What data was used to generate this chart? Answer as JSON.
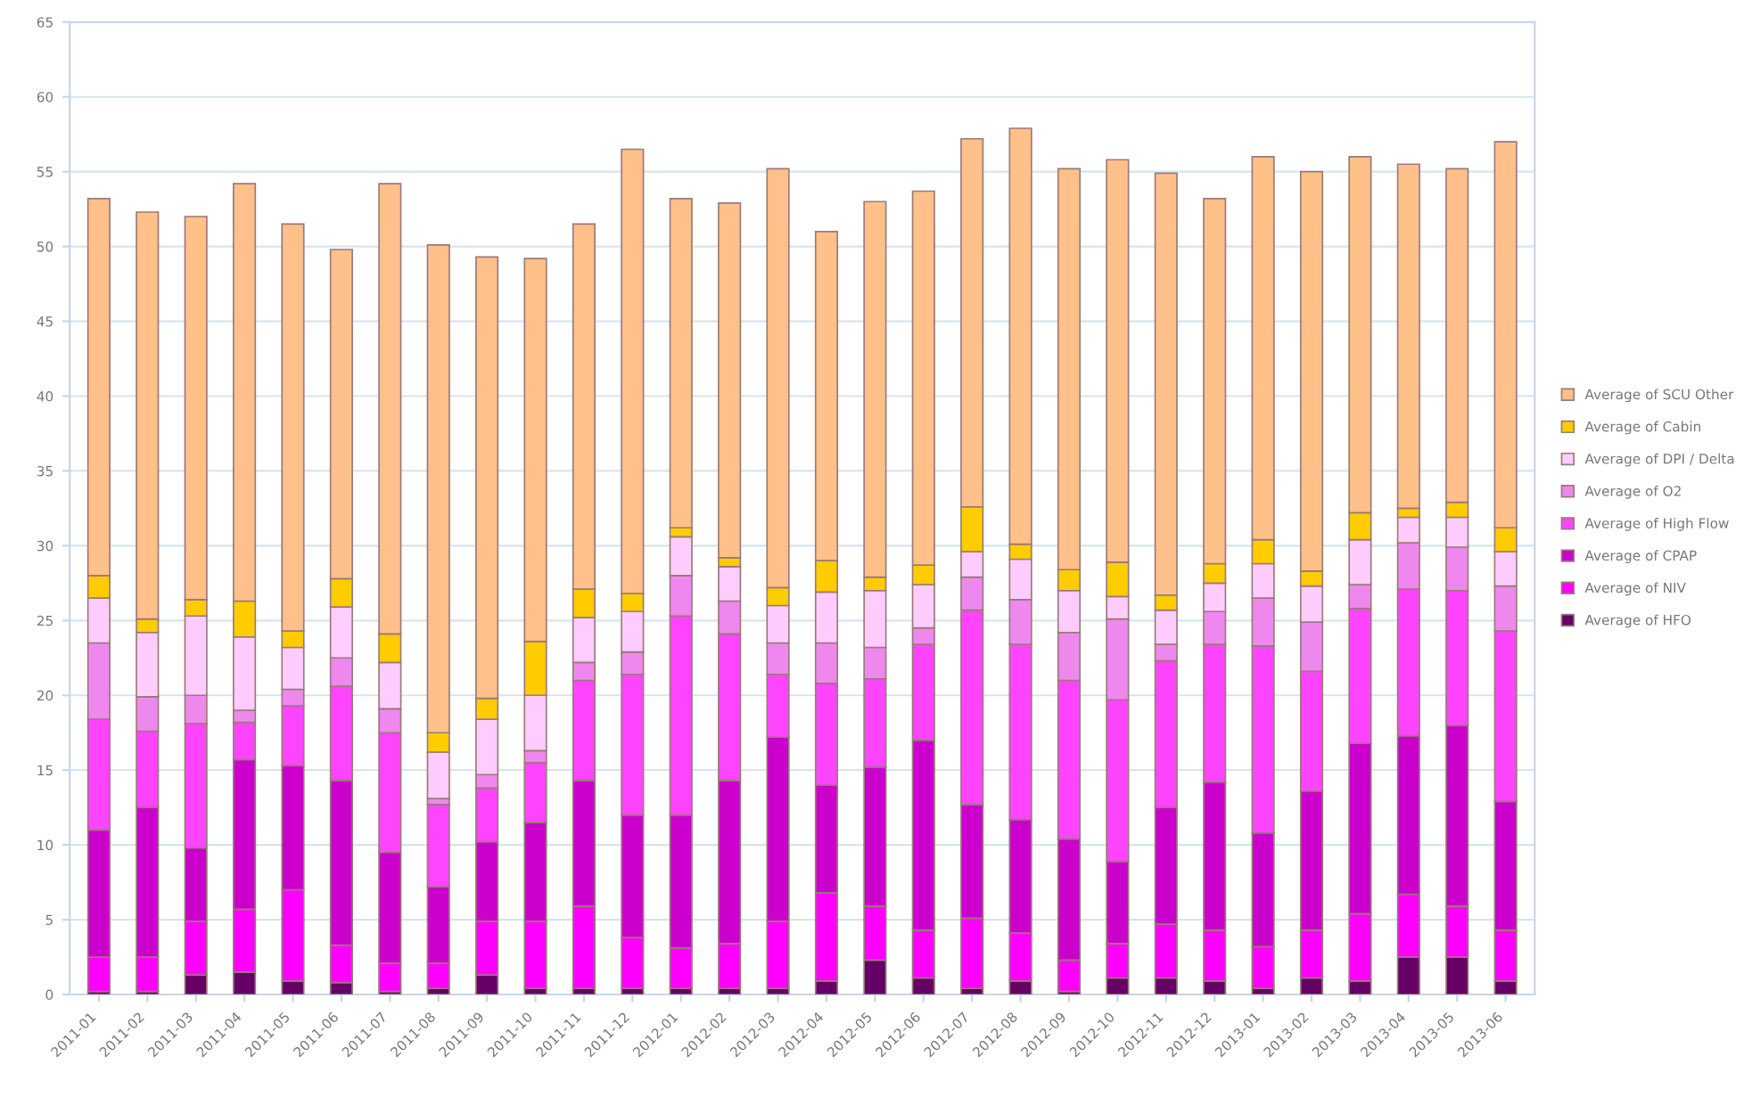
{
  "chart_data": {
    "type": "bar",
    "stacked": true,
    "categories": [
      "2011-01",
      "2011-02",
      "2011-03",
      "2011-04",
      "2011-05",
      "2011-06",
      "2011-07",
      "2011-08",
      "2011-09",
      "2011-10",
      "2011-11",
      "2011-12",
      "2012-01",
      "2012-02",
      "2012-03",
      "2012-04",
      "2012-05",
      "2012-06",
      "2012-07",
      "2012-08",
      "2012-09",
      "2012-10",
      "2012-11",
      "2012-12",
      "2013-01",
      "2013-02",
      "2013-03",
      "2013-04",
      "2013-05",
      "2013-06"
    ],
    "series": [
      {
        "name": "Average of HFO",
        "color": "#660066",
        "values": [
          0.2,
          0.2,
          1.3,
          1.5,
          0.9,
          0.8,
          0.2,
          0.4,
          1.3,
          0.4,
          0.4,
          0.4,
          0.4,
          0.4,
          0.4,
          0.9,
          2.3,
          1.1,
          0.4,
          0.9,
          0.2,
          1.1,
          1.1,
          0.9,
          0.4,
          1.1,
          0.9,
          2.5,
          2.5,
          0.9
        ]
      },
      {
        "name": "Average of NIV",
        "color": "#ff00ff",
        "values": [
          2.3,
          2.3,
          3.6,
          4.2,
          6.1,
          2.5,
          1.9,
          1.7,
          3.6,
          4.5,
          5.5,
          3.4,
          2.7,
          3.0,
          4.5,
          5.9,
          3.6,
          3.2,
          4.7,
          3.2,
          2.1,
          2.3,
          3.6,
          3.4,
          2.8,
          3.2,
          4.5,
          4.2,
          3.4,
          3.4
        ]
      },
      {
        "name": "Average of CPAP",
        "color": "#cc00cc",
        "values": [
          8.5,
          10.0,
          4.9,
          10.0,
          8.3,
          11.0,
          7.4,
          5.1,
          5.3,
          6.6,
          8.4,
          8.2,
          8.9,
          10.9,
          12.3,
          7.2,
          9.3,
          12.7,
          7.6,
          7.6,
          8.1,
          5.5,
          7.8,
          9.9,
          7.6,
          9.3,
          11.4,
          10.6,
          12.1,
          8.6
        ]
      },
      {
        "name": "Average of High Flow",
        "color": "#ff44ff",
        "values": [
          7.4,
          5.1,
          8.3,
          2.5,
          4.0,
          6.3,
          8.0,
          5.5,
          3.6,
          4.0,
          6.7,
          9.4,
          13.3,
          9.8,
          4.2,
          6.8,
          5.9,
          6.4,
          13.0,
          11.7,
          10.6,
          10.8,
          9.8,
          9.2,
          12.5,
          8.0,
          9.0,
          9.8,
          9.0,
          11.4
        ]
      },
      {
        "name": "Average of O2",
        "color": "#ee88ee",
        "values": [
          5.1,
          2.3,
          1.9,
          0.8,
          1.1,
          1.9,
          1.6,
          0.4,
          0.9,
          0.8,
          1.2,
          1.5,
          2.7,
          2.2,
          2.1,
          2.7,
          2.1,
          1.1,
          2.2,
          3.0,
          3.2,
          5.4,
          1.1,
          2.2,
          3.2,
          3.3,
          1.6,
          3.1,
          2.9,
          3.0
        ]
      },
      {
        "name": "Average of DPI / Delta",
        "color": "#ffccff",
        "values": [
          3.0,
          4.3,
          5.3,
          4.9,
          2.8,
          3.4,
          3.1,
          3.1,
          3.7,
          3.7,
          3.0,
          2.7,
          2.6,
          2.3,
          2.5,
          3.4,
          3.8,
          2.9,
          1.7,
          2.7,
          2.8,
          1.5,
          2.3,
          1.9,
          2.3,
          2.4,
          3.0,
          1.7,
          2.0,
          2.3
        ]
      },
      {
        "name": "Average of Cabin",
        "color": "#ffcc00",
        "values": [
          1.5,
          0.9,
          1.1,
          2.4,
          1.1,
          1.9,
          1.9,
          1.3,
          1.4,
          3.6,
          1.9,
          1.2,
          0.6,
          0.6,
          1.2,
          2.1,
          0.9,
          1.3,
          3.0,
          1.0,
          1.4,
          2.3,
          1.0,
          1.3,
          1.6,
          1.0,
          1.8,
          0.6,
          1.0,
          1.6
        ]
      },
      {
        "name": "Average of SCU Other",
        "color": "#ffc08a",
        "values": [
          25.2,
          27.2,
          25.6,
          27.9,
          27.2,
          22.0,
          30.1,
          32.6,
          29.5,
          25.6,
          24.4,
          29.7,
          22.0,
          23.7,
          28.0,
          22.0,
          25.1,
          25.0,
          24.6,
          27.8,
          26.8,
          26.9,
          28.2,
          24.4,
          25.6,
          26.7,
          23.8,
          23.0,
          22.3,
          25.8
        ]
      }
    ],
    "ylim": [
      0,
      65
    ],
    "yticks": [
      0,
      5,
      10,
      15,
      20,
      25,
      30,
      35,
      40,
      45,
      50,
      55,
      60,
      65
    ],
    "grid": "y",
    "legend": "right"
  }
}
